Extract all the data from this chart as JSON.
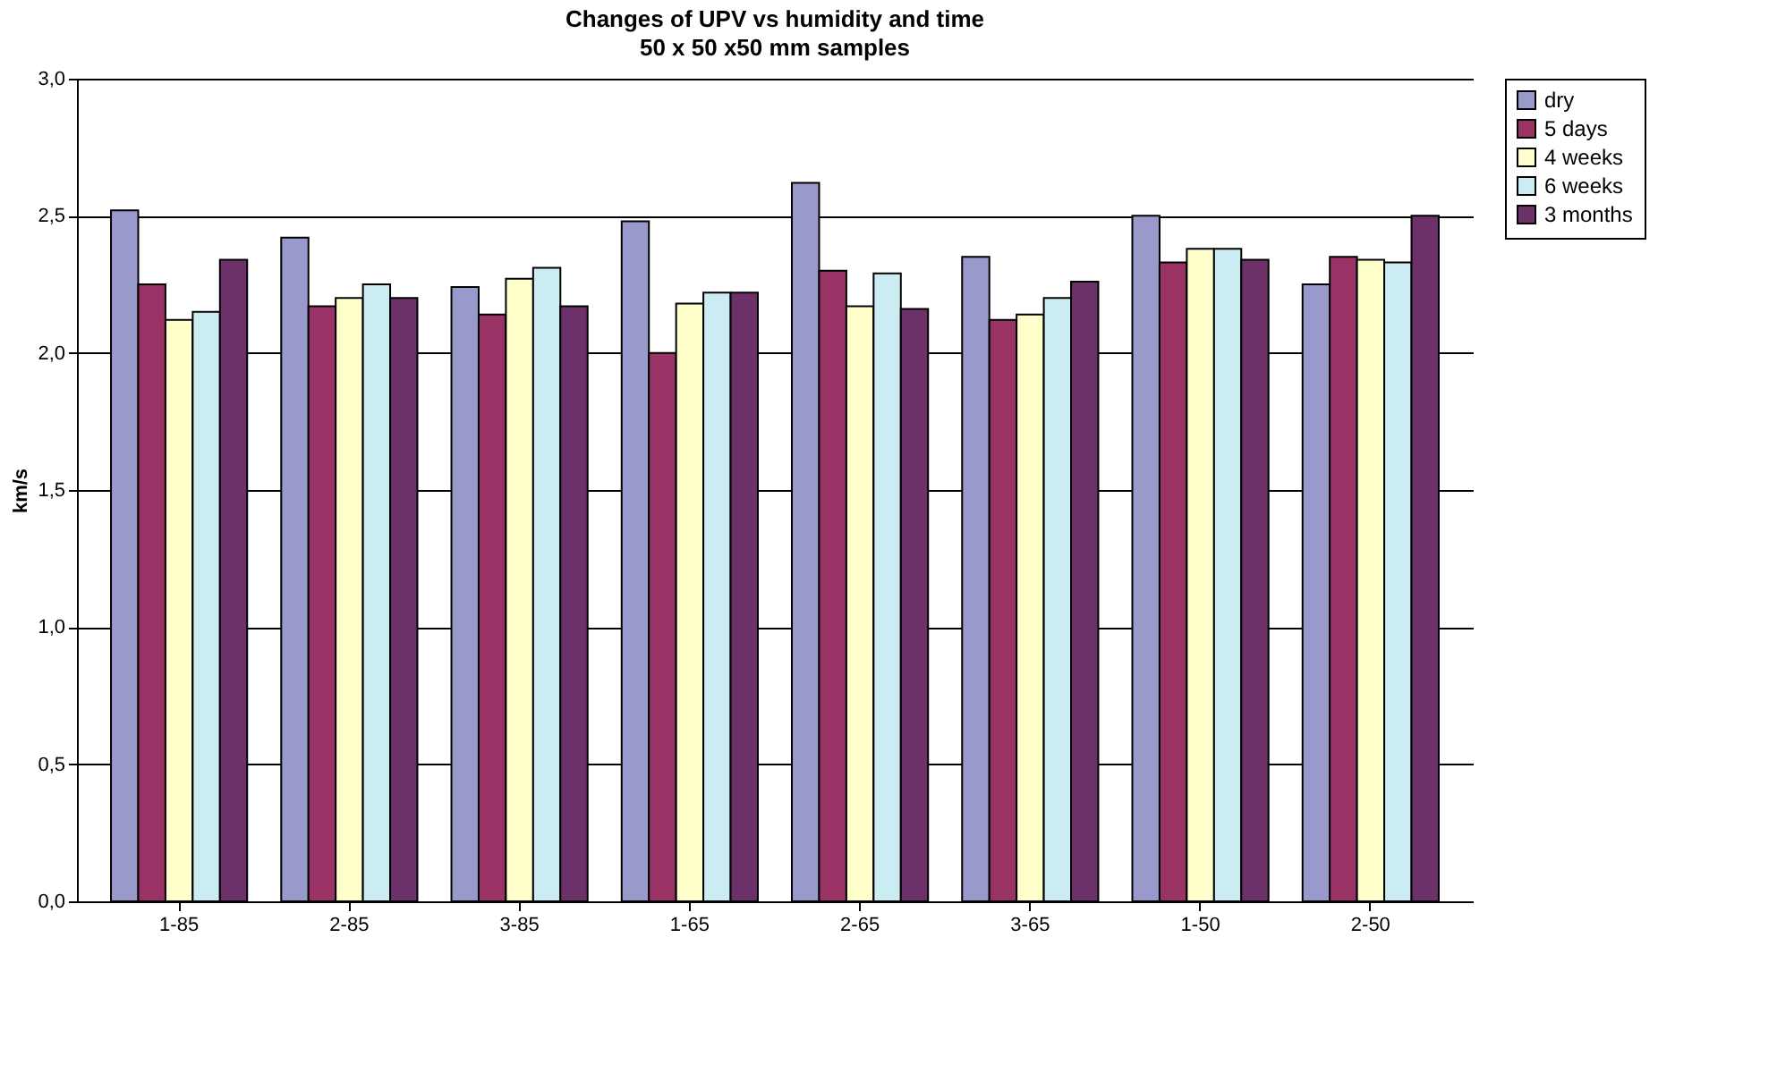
{
  "chart_data": {
    "type": "bar",
    "title": "Changes of UPV vs humidity and time",
    "subtitle": "50 x 50 x50 mm samples",
    "ylabel": "km/s",
    "categories": [
      "1-85",
      "2-85",
      "3-85",
      "1-65",
      "2-65",
      "3-65",
      "1-50",
      "2-50"
    ],
    "series": [
      {
        "name": "dry",
        "color": "#9999cc",
        "values": [
          2.52,
          2.42,
          2.24,
          2.48,
          2.62,
          2.35,
          2.5,
          2.25
        ]
      },
      {
        "name": "5 days",
        "color": "#993366",
        "values": [
          2.25,
          2.17,
          2.14,
          2.0,
          2.3,
          2.12,
          2.33,
          2.35
        ]
      },
      {
        "name": "4 weeks",
        "color": "#ffffcc",
        "values": [
          2.12,
          2.2,
          2.27,
          2.18,
          2.17,
          2.14,
          2.38,
          2.34
        ]
      },
      {
        "name": "6 weeks",
        "color": "#ccecf4",
        "values": [
          2.15,
          2.25,
          2.31,
          2.22,
          2.29,
          2.2,
          2.38,
          2.33
        ]
      },
      {
        "name": "3 months",
        "color": "#6b3168",
        "values": [
          2.34,
          2.2,
          2.17,
          2.22,
          2.16,
          2.26,
          2.34,
          2.5
        ]
      }
    ],
    "ylim": [
      0,
      3
    ],
    "yticks": [
      {
        "value": 0,
        "label": "0,0"
      },
      {
        "value": 0.5,
        "label": "0,5"
      },
      {
        "value": 1,
        "label": "1,0"
      },
      {
        "value": 1.5,
        "label": "1,5"
      },
      {
        "value": 2,
        "label": "2,0"
      },
      {
        "value": 2.5,
        "label": "2,5"
      },
      {
        "value": 3,
        "label": "3,0"
      }
    ],
    "grid": "y",
    "legend": "right"
  }
}
